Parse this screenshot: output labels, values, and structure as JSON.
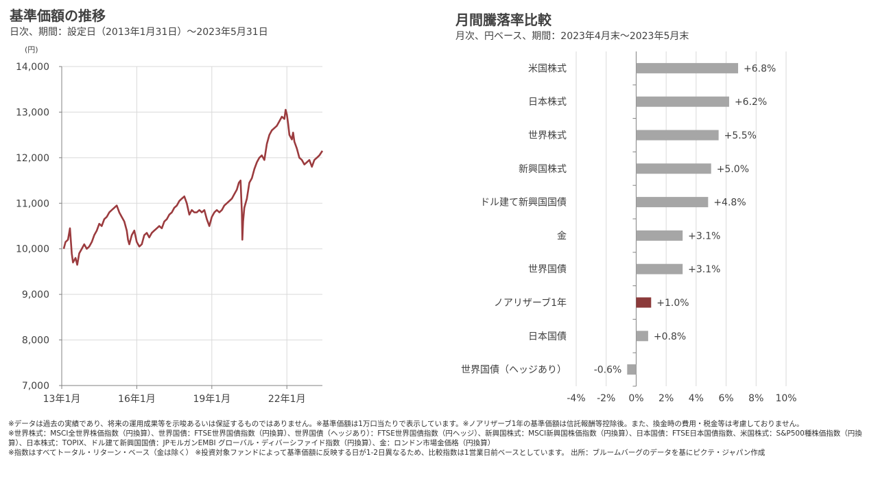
{
  "left_chart": {
    "title": "基準価額の推移",
    "subtitle": "日次、期間：設定日（2013年1月31日）～2023年5月31日",
    "unit": "(円)"
  },
  "right_chart": {
    "title": "月間騰落率比較",
    "subtitle": "月次、円ベース、期間：2023年4月末～2023年5月末"
  },
  "colors": {
    "line": "#9b3b3e",
    "bar_gray": "#a6a6a6",
    "bar_highlight": "#8b3a3a",
    "grid": "#d9d9d9",
    "text": "#404040"
  },
  "chart_data": [
    {
      "type": "line",
      "ylim": [
        7000,
        14000
      ],
      "yticks": [
        7000,
        8000,
        9000,
        10000,
        11000,
        12000,
        13000,
        14000
      ],
      "ytick_labels": [
        "7,000",
        "8,000",
        "9,000",
        "10,000",
        "11,000",
        "12,000",
        "13,000",
        "14,000"
      ],
      "xticks": [
        "13年1月",
        "16年1月",
        "19年1月",
        "22年1月"
      ],
      "xtick_years": [
        2013.0,
        2016.0,
        2019.0,
        2022.0
      ],
      "xlim": [
        2013.0,
        2023.42
      ],
      "grid": true,
      "series": [
        {
          "x": [
            2013.08,
            2013.15,
            2013.25,
            2013.33,
            2013.4,
            2013.45,
            2013.55,
            2013.62,
            2013.7,
            2013.8,
            2013.9,
            2014.0,
            2014.1,
            2014.2,
            2014.3,
            2014.4,
            2014.5,
            2014.6,
            2014.7,
            2014.8,
            2014.9,
            2015.0,
            2015.1,
            2015.2,
            2015.3,
            2015.4,
            2015.5,
            2015.6,
            2015.65,
            2015.7,
            2015.8,
            2015.9,
            2016.0,
            2016.1,
            2016.2,
            2016.3,
            2016.4,
            2016.5,
            2016.6,
            2016.7,
            2016.8,
            2016.9,
            2017.0,
            2017.1,
            2017.2,
            2017.3,
            2017.4,
            2017.5,
            2017.6,
            2017.7,
            2017.8,
            2017.9,
            2018.0,
            2018.1,
            2018.2,
            2018.3,
            2018.4,
            2018.5,
            2018.6,
            2018.7,
            2018.8,
            2018.9,
            2019.0,
            2019.1,
            2019.2,
            2019.3,
            2019.4,
            2019.5,
            2019.6,
            2019.7,
            2019.8,
            2019.9,
            2020.0,
            2020.08,
            2020.15,
            2020.2,
            2020.22,
            2020.25,
            2020.3,
            2020.4,
            2020.5,
            2020.6,
            2020.7,
            2020.8,
            2020.9,
            2021.0,
            2021.1,
            2021.2,
            2021.3,
            2021.4,
            2021.5,
            2021.6,
            2021.7,
            2021.8,
            2021.9,
            2021.95,
            2022.0,
            2022.05,
            2022.1,
            2022.2,
            2022.25,
            2022.3,
            2022.4,
            2022.5,
            2022.6,
            2022.7,
            2022.8,
            2022.9,
            2023.0,
            2023.1,
            2023.2,
            2023.3,
            2023.42
          ],
          "y": [
            10000,
            10150,
            10200,
            10450,
            9900,
            9700,
            9800,
            9650,
            9900,
            10000,
            10100,
            10000,
            10050,
            10150,
            10300,
            10400,
            10550,
            10500,
            10650,
            10700,
            10800,
            10850,
            10900,
            10950,
            10800,
            10700,
            10600,
            10400,
            10200,
            10100,
            10300,
            10400,
            10150,
            10050,
            10100,
            10300,
            10350,
            10250,
            10350,
            10400,
            10450,
            10500,
            10450,
            10600,
            10650,
            10750,
            10800,
            10900,
            10950,
            11050,
            11100,
            11150,
            11000,
            10750,
            10850,
            10800,
            10800,
            10850,
            10800,
            10850,
            10650,
            10500,
            10700,
            10800,
            10850,
            10800,
            10850,
            10950,
            11000,
            11050,
            11100,
            11200,
            11300,
            11450,
            11500,
            10800,
            10200,
            10600,
            10900,
            11100,
            11450,
            11550,
            11750,
            11900,
            12000,
            12050,
            11950,
            12300,
            12500,
            12600,
            12650,
            12700,
            12800,
            12900,
            12850,
            13050,
            12950,
            12750,
            12500,
            12400,
            12550,
            12350,
            12200,
            12000,
            11950,
            11850,
            11900,
            11950,
            11800,
            11950,
            12000,
            12050,
            12150
          ]
        }
      ]
    },
    {
      "type": "bar",
      "orientation": "horizontal",
      "categories": [
        "米国株式",
        "日本株式",
        "世界株式",
        "新興国株式",
        "ドル建て新興国国債",
        "金",
        "世界国債",
        "ノアリザーブ1年",
        "日本国債",
        "世界国債（ヘッジあり）"
      ],
      "values": [
        6.8,
        6.2,
        5.5,
        5.0,
        4.8,
        3.1,
        3.1,
        1.0,
        0.8,
        -0.6
      ],
      "value_labels": [
        "+6.8%",
        "+6.2%",
        "+5.5%",
        "+5.0%",
        "+4.8%",
        "+3.1%",
        "+3.1%",
        "+1.0%",
        "+0.8%",
        "-0.6%"
      ],
      "highlight_index": 7,
      "xlim": [
        -4,
        10
      ],
      "xticks": [
        -4,
        -2,
        0,
        2,
        4,
        6,
        8,
        10
      ],
      "xtick_labels": [
        "-4%",
        "-2%",
        "0%",
        "2%",
        "4%",
        "6%",
        "8%",
        "10%"
      ],
      "grid": true
    }
  ],
  "notes": [
    "※データは過去の実績であり、将来の運用成果等を示唆あるいは保証するものではありません。※基準価額は1万口当たりで表示しています。※ノアリザーブ1年の基準価額は信託報酬等控除後。また、換金時の費用・税金等は考慮しておりません。",
    "※世界株式：MSCI全世界株価指数（円換算）、世界国債：FTSE世界国債指数（円換算）、世界国債（ヘッジあり）：FTSE世界国債指数（円ヘッジ）、新興国株式：MSCI新興国株価指数（円換算）、日本国債：FTSE日本国債指数、米国株式：S&P500種株価指数（円換算）、日本株式：TOPIX、ドル建て新興国国債：JPモルガンEMBI グローバル・ディバーシファイド指数（円換算）、金：ロンドン市場金価格（円換算）",
    "※指数はすべてトータル・リターン・ベース（金は除く） ※投資対象ファンドによって基準価額に反映する日が1-2日異なるため、比較指数は1営業日前ベースとしています。 出所：ブルームバーグのデータを基にピクテ・ジャパン作成"
  ]
}
